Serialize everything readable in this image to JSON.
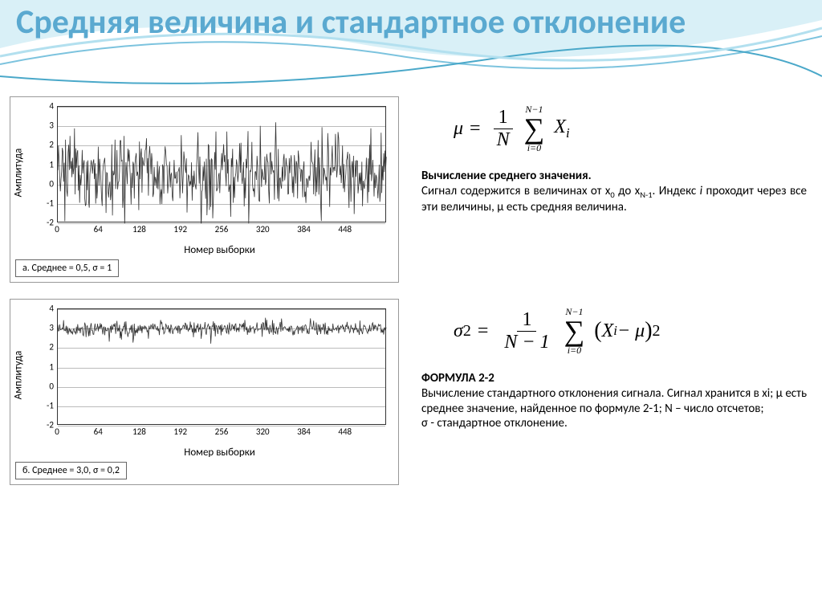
{
  "title": "Средняя величина и стандартное отклонение",
  "background": {
    "wave_colors": [
      "#b3e0ef",
      "#7cc3de",
      "#4aa8c9"
    ],
    "title_color": "#5aa9d0"
  },
  "chartA": {
    "type": "line",
    "y_label": "Амплитуда",
    "x_label": "Номер выборки",
    "legend": "а. Среднее = 0,5, σ = 1",
    "ylim": [
      -2,
      4
    ],
    "yticks": [
      -2,
      -1,
      0,
      1,
      2,
      3,
      4
    ],
    "xlim": [
      0,
      512
    ],
    "xticks": [
      0,
      64,
      128,
      192,
      256,
      320,
      384,
      448
    ],
    "mean": 0.5,
    "sigma": 1.0,
    "n_points": 512,
    "line_color": "#333333",
    "grid_color": "#bbbbbb",
    "background_color": "#ffffff",
    "label_fontsize": 13,
    "tick_fontsize": 11
  },
  "chartB": {
    "type": "line",
    "y_label": "Амплитуда",
    "x_label": "Номер выборки",
    "legend": "б. Среднее = 3,0, σ = 0,2",
    "ylim": [
      -2,
      4
    ],
    "yticks": [
      -2,
      -1,
      0,
      1,
      2,
      3,
      4
    ],
    "xlim": [
      0,
      512
    ],
    "xticks": [
      0,
      64,
      128,
      192,
      256,
      320,
      384,
      448
    ],
    "mean": 3.0,
    "sigma": 0.2,
    "n_points": 512,
    "line_color": "#333333",
    "grid_color": "#bbbbbb",
    "background_color": "#ffffff",
    "label_fontsize": 13,
    "tick_fontsize": 11
  },
  "formula1": {
    "lhs": "μ",
    "eq": "=",
    "frac_num": "1",
    "frac_den": "N",
    "sum_top": "N−1",
    "sum_sym": "∑",
    "sum_bot": "i=0",
    "term": "X",
    "term_sub": "i"
  },
  "desc1": {
    "title": "Вычисление среднего значения.",
    "body_a": "Сигнал содержится в величинах от x",
    "sub0": "0",
    "body_b": " до x",
    "subN": "N-1",
    "body_c": ". Индекс ",
    "idx_i": "i",
    "body_d": " проходит через все эти величины, μ есть средняя величина."
  },
  "formula2": {
    "lhs": "σ",
    "lhs_sup": "2",
    "eq": "=",
    "frac_num": "1",
    "frac_den": "N − 1",
    "sum_top": "N−1",
    "sum_sym": "∑",
    "sum_bot": "i=0",
    "open": "(",
    "X": "X",
    "X_sub": "i",
    "minus": " − μ",
    "close": ")",
    "pow": "2"
  },
  "desc2": {
    "title": "ФОРМУЛА 2-2",
    "body": "Вычисление стандартного отклонения сигнала. Сигнал хранится в xi; μ есть среднее значение, найденное по формуле 2-1; N – число отсчетов;",
    "body2": "σ - стандартное отклонение."
  }
}
